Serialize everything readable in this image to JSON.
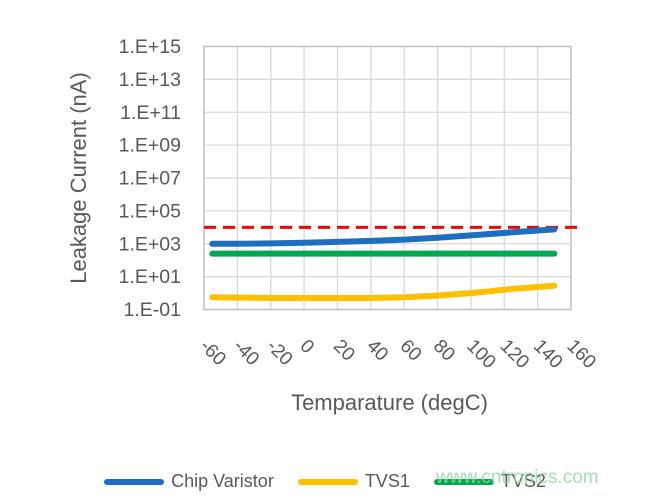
{
  "watermark": {
    "text": "www.cntronics.com",
    "color": "#8FD7A3"
  },
  "colors": {
    "axis_text": "#595959",
    "gridline": "#D8D8D8",
    "plot_border": "#BFBFBF",
    "background": "#FFFFFF"
  },
  "chart_data": {
    "type": "line",
    "xlabel": "Temparature (degC)",
    "ylabel": "Leakage Current (nA)",
    "y_scale": "log",
    "grid": true,
    "legend_position": "bottom",
    "x_range": [
      -60,
      160
    ],
    "y_log_range": [
      -1,
      15
    ],
    "x_tick_labels": [
      "-60",
      "-40",
      "-20",
      "0",
      "20",
      "40",
      "60",
      "80",
      "100",
      "120",
      "140",
      "160"
    ],
    "y_tick_labels": [
      "1.E+15",
      "1.E+13",
      "1.E+11",
      "1.E+09",
      "1.E+07",
      "1.E+05",
      "1.E+03",
      "1.E+01",
      "1.E-01"
    ],
    "x": [
      -55,
      -40,
      -20,
      0,
      20,
      40,
      60,
      80,
      100,
      125,
      150
    ],
    "series": [
      {
        "name": "Chip Varistor",
        "color": "#1E6FC0",
        "values": [
          1000,
          1000,
          1050,
          1150,
          1300,
          1500,
          1800,
          2300,
          3200,
          5000,
          7500
        ]
      },
      {
        "name": "TVS1",
        "color": "#FFC000",
        "values": [
          0.55,
          0.53,
          0.5,
          0.5,
          0.5,
          0.5,
          0.55,
          0.7,
          1.0,
          1.8,
          2.8
        ]
      },
      {
        "name": "TVS2",
        "color": "#00A850",
        "values": [
          250,
          250,
          250,
          250,
          250,
          250,
          250,
          250,
          250,
          250,
          250
        ]
      }
    ],
    "reference_line": {
      "value": 10000,
      "style": "dashed",
      "color": "#FF0000"
    }
  }
}
